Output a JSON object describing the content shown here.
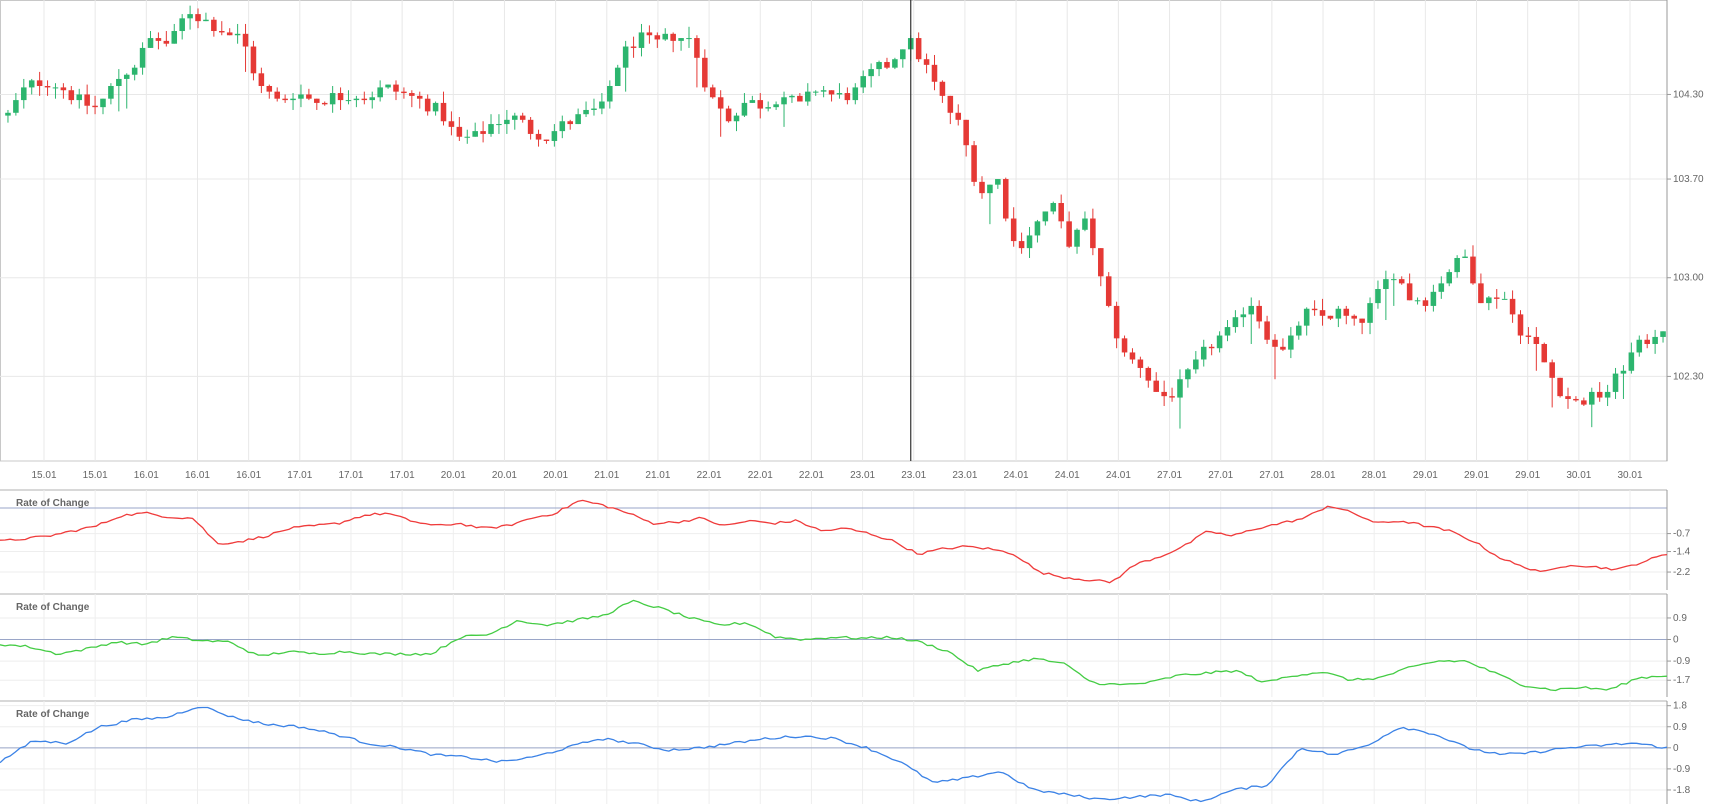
{
  "chart_data": [
    {
      "type": "candlestick",
      "x_tick_labels": [
        "15.01",
        "15.01",
        "16.01",
        "16.01",
        "16.01",
        "17.01",
        "17.01",
        "17.01",
        "20.01",
        "20.01",
        "20.01",
        "21.01",
        "21.01",
        "22.01",
        "22.01",
        "22.01",
        "23.01",
        "23.01",
        "23.01",
        "24.01",
        "24.01",
        "24.01",
        "27.01",
        "27.01",
        "27.01",
        "28.01",
        "28.01",
        "29.01",
        "29.01",
        "29.01",
        "30.01",
        "30.01"
      ],
      "y_ticks": [
        {
          "value": 104.3,
          "label": "104.30"
        },
        {
          "value": 103.7,
          "label": "103.70"
        },
        {
          "value": 103.0,
          "label": "103.00"
        },
        {
          "value": 102.3,
          "label": "102.30"
        }
      ],
      "ylim": [
        101.7,
        104.97
      ],
      "crosshair_index": 17,
      "up_color": "#2cb56e",
      "down_color": "#e53935",
      "close_path": [
        104.15,
        104.35,
        104.4,
        104.35,
        104.25,
        104.2,
        104.4,
        104.5,
        104.7,
        104.65,
        104.9,
        104.82,
        104.75,
        104.7,
        104.35,
        104.25,
        104.32,
        104.25,
        104.28,
        104.3,
        104.28,
        104.35,
        104.3,
        104.25,
        104.18,
        103.98,
        104.0,
        104.1,
        104.15,
        104.05,
        104.0,
        104.1,
        104.15,
        104.2,
        104.55,
        104.7,
        104.65,
        104.72,
        104.68,
        104.3,
        104.12,
        104.25,
        104.22,
        104.3,
        104.22,
        104.35,
        104.28,
        104.3,
        104.45,
        104.52,
        104.7,
        104.5,
        104.25,
        104.05,
        103.6,
        103.7,
        103.2,
        103.35,
        103.52,
        103.25,
        103.4,
        102.85,
        102.45,
        102.38,
        102.15,
        102.2,
        102.38,
        102.55,
        102.62,
        102.85,
        102.6,
        102.45,
        102.75,
        102.72,
        102.75,
        102.65,
        102.85,
        103.05,
        102.85,
        102.85,
        103.05,
        103.15,
        102.82,
        102.9,
        102.65,
        102.5,
        102.25,
        102.1,
        102.15,
        102.2,
        102.42,
        102.55,
        102.65
      ],
      "candles": []
    },
    {
      "type": "line",
      "title": "Rate of Change",
      "color": "#ef3b3b",
      "y_ticks": [
        {
          "value": -0.7,
          "label": "-0.7"
        },
        {
          "value": -1.4,
          "label": "-1.4"
        },
        {
          "value": -2.2,
          "label": "-2.2"
        }
      ],
      "ylim": [
        -2.9,
        1.0
      ],
      "ref_line": 0.3,
      "path": [
        -1.0,
        -0.9,
        -0.8,
        -0.6,
        -0.4,
        0.0,
        0.1,
        -0.05,
        -0.1,
        -1.1,
        -1.0,
        -0.8,
        -0.5,
        -0.4,
        -0.3,
        0.0,
        0.1,
        -0.2,
        -0.4,
        -0.3,
        -0.5,
        -0.4,
        -0.1,
        0.1,
        0.6,
        0.4,
        0.1,
        -0.3,
        -0.25,
        -0.1,
        -0.4,
        -0.2,
        -0.3,
        -0.2,
        -0.6,
        -0.5,
        -0.7,
        -1.0,
        -1.5,
        -1.3,
        -1.2,
        -1.3,
        -1.5,
        -2.2,
        -2.4,
        -2.5,
        -2.6,
        -1.9,
        -1.6,
        -1.2,
        -0.6,
        -0.8,
        -0.5,
        -0.3,
        -0.1,
        0.4,
        0.1,
        -0.3,
        -0.2,
        -0.4,
        -0.6,
        -1.0,
        -1.6,
        -2.0,
        -2.2,
        -1.9,
        -2.0,
        -2.1,
        -1.8,
        -1.5
      ]
    },
    {
      "type": "line",
      "title": "Rate of Change",
      "color": "#44cc44",
      "y_ticks": [
        {
          "value": 0.9,
          "label": "0.9"
        },
        {
          "value": 0,
          "label": "0"
        },
        {
          "value": -0.9,
          "label": "-0.9"
        },
        {
          "value": -1.7,
          "label": "-1.7"
        }
      ],
      "ylim": [
        -2.4,
        1.9
      ],
      "ref_line": 0,
      "path": [
        -0.2,
        -0.3,
        -0.6,
        -0.4,
        -0.1,
        -0.2,
        0.1,
        -0.05,
        -0.1,
        -0.7,
        -0.5,
        -0.6,
        -0.5,
        -0.6,
        -0.6,
        -0.6,
        0.1,
        0.2,
        0.8,
        0.6,
        0.8,
        1.0,
        1.6,
        1.3,
        0.9,
        0.6,
        0.7,
        0.1,
        0.0,
        0.1,
        0.05,
        0.1,
        -0.1,
        -0.5,
        -1.3,
        -1.0,
        -0.8,
        -1.0,
        -1.8,
        -1.9,
        -1.8,
        -1.5,
        -1.4,
        -1.3,
        -1.8,
        -1.5,
        -1.35,
        -1.7,
        -1.6,
        -1.2,
        -0.9,
        -0.9,
        -1.4,
        -1.9,
        -2.1,
        -2.0,
        -2.1,
        -1.6,
        -1.5
      ]
    },
    {
      "type": "line",
      "title": "Rate of Change",
      "color": "#3b82e6",
      "y_ticks": [
        {
          "value": 1.8,
          "label": "1.8"
        },
        {
          "value": 0.9,
          "label": "0.9"
        },
        {
          "value": 0,
          "label": "0"
        },
        {
          "value": -0.9,
          "label": "-0.9"
        },
        {
          "value": -1.8,
          "label": "-1.8"
        }
      ],
      "ylim": [
        -2.4,
        2.0
      ],
      "ref_line": 0,
      "path": [
        -0.6,
        0.3,
        0.2,
        0.9,
        1.2,
        1.3,
        1.8,
        1.3,
        1.0,
        0.9,
        0.6,
        0.2,
        0.0,
        -0.3,
        -0.4,
        -0.6,
        -0.4,
        0.0,
        0.4,
        0.2,
        -0.1,
        0.0,
        0.2,
        0.4,
        0.5,
        0.4,
        0.0,
        -0.6,
        -1.5,
        -1.3,
        -1.0,
        -1.8,
        -2.0,
        -2.2,
        -2.1,
        -2.0,
        -2.3,
        -1.8,
        -1.6,
        0.0,
        -0.3,
        0.1,
        0.9,
        0.6,
        0.0,
        -0.3,
        -0.2,
        0.0,
        0.1,
        0.2,
        0.0
      ]
    }
  ]
}
